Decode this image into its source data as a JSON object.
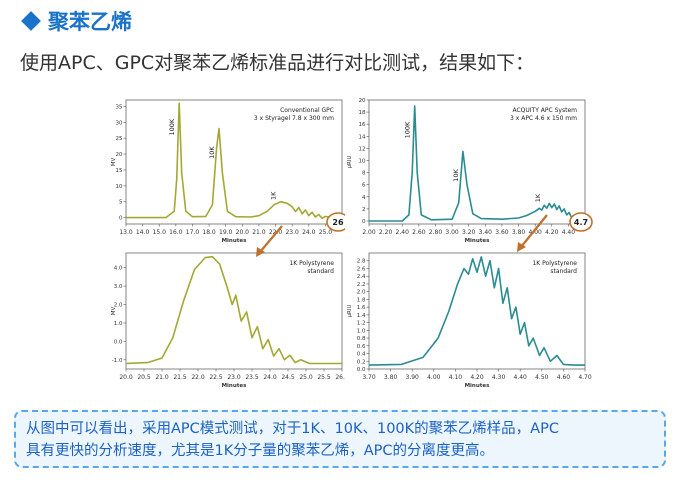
{
  "heading": {
    "title": "聚苯乙烯"
  },
  "subtitle": "使用APC、GPC对聚苯乙烯标准品进行对比测试，结果如下：",
  "note": {
    "line1": "从图中可以看出，采用APC模式测试，对于1K、10K、100K的聚苯乙烯样品，APC",
    "line2": "具有更快的分析速度，尤其是1K分子量的聚苯乙烯，APC的分离度更高。"
  },
  "colors": {
    "gpc": "#a3a833",
    "apc": "#2a8c93",
    "arrow": "#c0702a",
    "accent": "#1a73c8"
  },
  "chart_data": [
    {
      "type": "line",
      "id": "gpc-full",
      "legend": [
        "Conventional GPC",
        "3 x Styragel 7.8 x 300 mm"
      ],
      "xlabel": "Minutes",
      "ylabel": "MV",
      "xlim": [
        13.0,
        26.0
      ],
      "ylim": [
        -2,
        37
      ],
      "xticks": [
        "13.0",
        "14.0",
        "15.0",
        "16.0",
        "17.0",
        "18.0",
        "19.0",
        "20.0",
        "21.0",
        "22.0",
        "23.0",
        "24.0",
        "25.0"
      ],
      "yticks": [
        "0",
        "5",
        "10",
        "15",
        "20",
        "25",
        "30",
        "35"
      ],
      "peak_labels": [
        {
          "text": "100K",
          "x": 16.2,
          "y": 36
        },
        {
          "text": "10K",
          "x": 18.6,
          "y": 28
        },
        {
          "text": "1K",
          "x": 22.3,
          "y": 5
        }
      ],
      "run_time": "26",
      "points": [
        [
          13.0,
          0
        ],
        [
          15.4,
          0
        ],
        [
          15.9,
          2
        ],
        [
          16.05,
          12
        ],
        [
          16.2,
          36
        ],
        [
          16.35,
          14
        ],
        [
          16.6,
          2
        ],
        [
          17.0,
          0.3
        ],
        [
          17.8,
          0.4
        ],
        [
          18.2,
          4
        ],
        [
          18.45,
          22
        ],
        [
          18.6,
          28
        ],
        [
          18.8,
          14
        ],
        [
          19.1,
          2
        ],
        [
          19.6,
          0.3
        ],
        [
          20.5,
          0.2
        ],
        [
          21.0,
          0.6
        ],
        [
          21.5,
          2
        ],
        [
          21.9,
          4
        ],
        [
          22.3,
          5
        ],
        [
          22.7,
          4.5
        ],
        [
          23.0,
          3.4
        ],
        [
          23.2,
          1.9
        ],
        [
          23.4,
          3.2
        ],
        [
          23.6,
          1.2
        ],
        [
          23.8,
          2.4
        ],
        [
          24.0,
          0.6
        ],
        [
          24.2,
          1.7
        ],
        [
          24.4,
          0.2
        ],
        [
          24.6,
          1.0
        ],
        [
          24.8,
          -0.2
        ],
        [
          25.0,
          0.4
        ],
        [
          25.3,
          0
        ]
      ]
    },
    {
      "type": "line",
      "id": "apc-full",
      "legend": [
        "ACQUITY APC System",
        "3 x APC 4.6 x 150 mm"
      ],
      "xlabel": "Minutes",
      "ylabel": "µRIU",
      "xlim": [
        2.0,
        4.6
      ],
      "ylim": [
        -0.5,
        20
      ],
      "xticks": [
        "2.00",
        "2.20",
        "2.40",
        "2.60",
        "2.80",
        "3.00",
        "3.20",
        "3.40",
        "3.60",
        "3.80",
        "4.00",
        "4.20",
        "4.40"
      ],
      "yticks": [
        "0",
        "2",
        "4",
        "6",
        "8",
        "10",
        "12",
        "14",
        "16",
        "18",
        "20"
      ],
      "peak_labels": [
        {
          "text": "100K",
          "x": 2.55,
          "y": 19
        },
        {
          "text": "10K",
          "x": 3.13,
          "y": 11.5
        },
        {
          "text": "1K",
          "x": 4.12,
          "y": 2.8
        }
      ],
      "run_time": "4.7",
      "points": [
        [
          2.0,
          0
        ],
        [
          2.4,
          0
        ],
        [
          2.48,
          1
        ],
        [
          2.52,
          8
        ],
        [
          2.55,
          19
        ],
        [
          2.58,
          8
        ],
        [
          2.63,
          1
        ],
        [
          2.75,
          0.2
        ],
        [
          3.0,
          0.3
        ],
        [
          3.08,
          3
        ],
        [
          3.13,
          11.5
        ],
        [
          3.18,
          6
        ],
        [
          3.25,
          1.2
        ],
        [
          3.35,
          0.4
        ],
        [
          3.6,
          0.3
        ],
        [
          3.8,
          0.5
        ],
        [
          3.9,
          0.9
        ],
        [
          4.0,
          1.6
        ],
        [
          4.05,
          2.1
        ],
        [
          4.08,
          1.8
        ],
        [
          4.11,
          2.6
        ],
        [
          4.14,
          2.1
        ],
        [
          4.17,
          2.9
        ],
        [
          4.2,
          2.2
        ],
        [
          4.23,
          2.8
        ],
        [
          4.26,
          1.9
        ],
        [
          4.29,
          2.5
        ],
        [
          4.32,
          1.5
        ],
        [
          4.35,
          2.0
        ],
        [
          4.38,
          1.0
        ],
        [
          4.41,
          1.4
        ],
        [
          4.44,
          0.5
        ],
        [
          4.47,
          0.8
        ],
        [
          4.52,
          0.2
        ],
        [
          4.6,
          0
        ]
      ]
    },
    {
      "type": "line",
      "id": "gpc-1k",
      "legend": [
        "1K Polystyrene",
        "standard"
      ],
      "xlabel": "Minutes",
      "ylabel": "MV",
      "xlim": [
        20.0,
        26.0
      ],
      "ylim": [
        -1.5,
        4.8
      ],
      "xticks": [
        "20.0",
        "20.5",
        "21.0",
        "21.5",
        "22.0",
        "22.5",
        "23.0",
        "23.5",
        "24.0",
        "24.5",
        "25.0",
        "25.5",
        "26.0"
      ],
      "yticks": [
        "-1.0",
        "0.0",
        "1.0",
        "2.0",
        "3.0",
        "4.0"
      ],
      "points": [
        [
          20.0,
          -1.2
        ],
        [
          20.6,
          -1.15
        ],
        [
          21.0,
          -0.9
        ],
        [
          21.3,
          0.2
        ],
        [
          21.6,
          2.2
        ],
        [
          21.9,
          3.9
        ],
        [
          22.2,
          4.55
        ],
        [
          22.4,
          4.6
        ],
        [
          22.6,
          4.2
        ],
        [
          22.8,
          3.0
        ],
        [
          22.95,
          2.0
        ],
        [
          23.05,
          2.5
        ],
        [
          23.2,
          1.1
        ],
        [
          23.35,
          1.6
        ],
        [
          23.5,
          0.2
        ],
        [
          23.65,
          0.8
        ],
        [
          23.8,
          -0.4
        ],
        [
          23.95,
          0.1
        ],
        [
          24.1,
          -0.8
        ],
        [
          24.25,
          -0.4
        ],
        [
          24.4,
          -1.0
        ],
        [
          24.55,
          -0.75
        ],
        [
          24.7,
          -1.15
        ],
        [
          24.85,
          -1.0
        ],
        [
          25.1,
          -1.2
        ],
        [
          26.0,
          -1.2
        ]
      ]
    },
    {
      "type": "line",
      "id": "apc-1k",
      "legend": [
        "1K Polystyrene",
        "standard"
      ],
      "xlabel": "Minutes",
      "ylabel": "µRIU",
      "xlim": [
        3.7,
        4.7
      ],
      "ylim": [
        0.0,
        3.0
      ],
      "xticks": [
        "3.70",
        "3.80",
        "3.90",
        "4.00",
        "4.10",
        "4.20",
        "4.30",
        "4.40",
        "4.50",
        "4.60",
        "4.70"
      ],
      "yticks": [
        "0.0",
        "0.2",
        "0.4",
        "0.6",
        "0.8",
        "1.0",
        "1.2",
        "1.4",
        "1.6",
        "1.8",
        "2.0",
        "2.2",
        "2.4",
        "2.6",
        "2.8"
      ],
      "points": [
        [
          3.7,
          0.1
        ],
        [
          3.85,
          0.12
        ],
        [
          3.95,
          0.3
        ],
        [
          4.02,
          0.8
        ],
        [
          4.07,
          1.5
        ],
        [
          4.11,
          2.2
        ],
        [
          4.14,
          2.6
        ],
        [
          4.16,
          2.45
        ],
        [
          4.18,
          2.85
        ],
        [
          4.2,
          2.5
        ],
        [
          4.22,
          2.9
        ],
        [
          4.24,
          2.4
        ],
        [
          4.26,
          2.8
        ],
        [
          4.28,
          2.1
        ],
        [
          4.3,
          2.6
        ],
        [
          4.32,
          1.7
        ],
        [
          4.34,
          2.1
        ],
        [
          4.36,
          1.3
        ],
        [
          4.38,
          1.6
        ],
        [
          4.4,
          0.9
        ],
        [
          4.42,
          1.2
        ],
        [
          4.44,
          0.6
        ],
        [
          4.46,
          0.8
        ],
        [
          4.49,
          0.35
        ],
        [
          4.51,
          0.55
        ],
        [
          4.54,
          0.2
        ],
        [
          4.57,
          0.35
        ],
        [
          4.6,
          0.12
        ],
        [
          4.65,
          0.1
        ],
        [
          4.7,
          0.1
        ]
      ]
    }
  ]
}
